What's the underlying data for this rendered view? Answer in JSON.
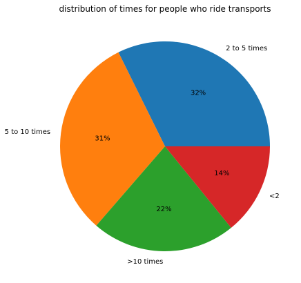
{
  "chart_data": {
    "type": "pie",
    "title": "distribution of times for people who ride transports",
    "start_angle": "0 degrees (3 o'clock), counter-clockwise",
    "slices": [
      {
        "label": "2 to 5 times",
        "value": 32,
        "pct_label": "32%",
        "color": "#1f77b4"
      },
      {
        "label": "5 to 10 times",
        "value": 31,
        "pct_label": "31%",
        "color": "#ff7f0e"
      },
      {
        "label": ">10 times",
        "value": 22,
        "pct_label": "22%",
        "color": "#2ca02c"
      },
      {
        "label": "<2",
        "value": 14,
        "pct_label": "14%",
        "color": "#d62728"
      }
    ]
  }
}
